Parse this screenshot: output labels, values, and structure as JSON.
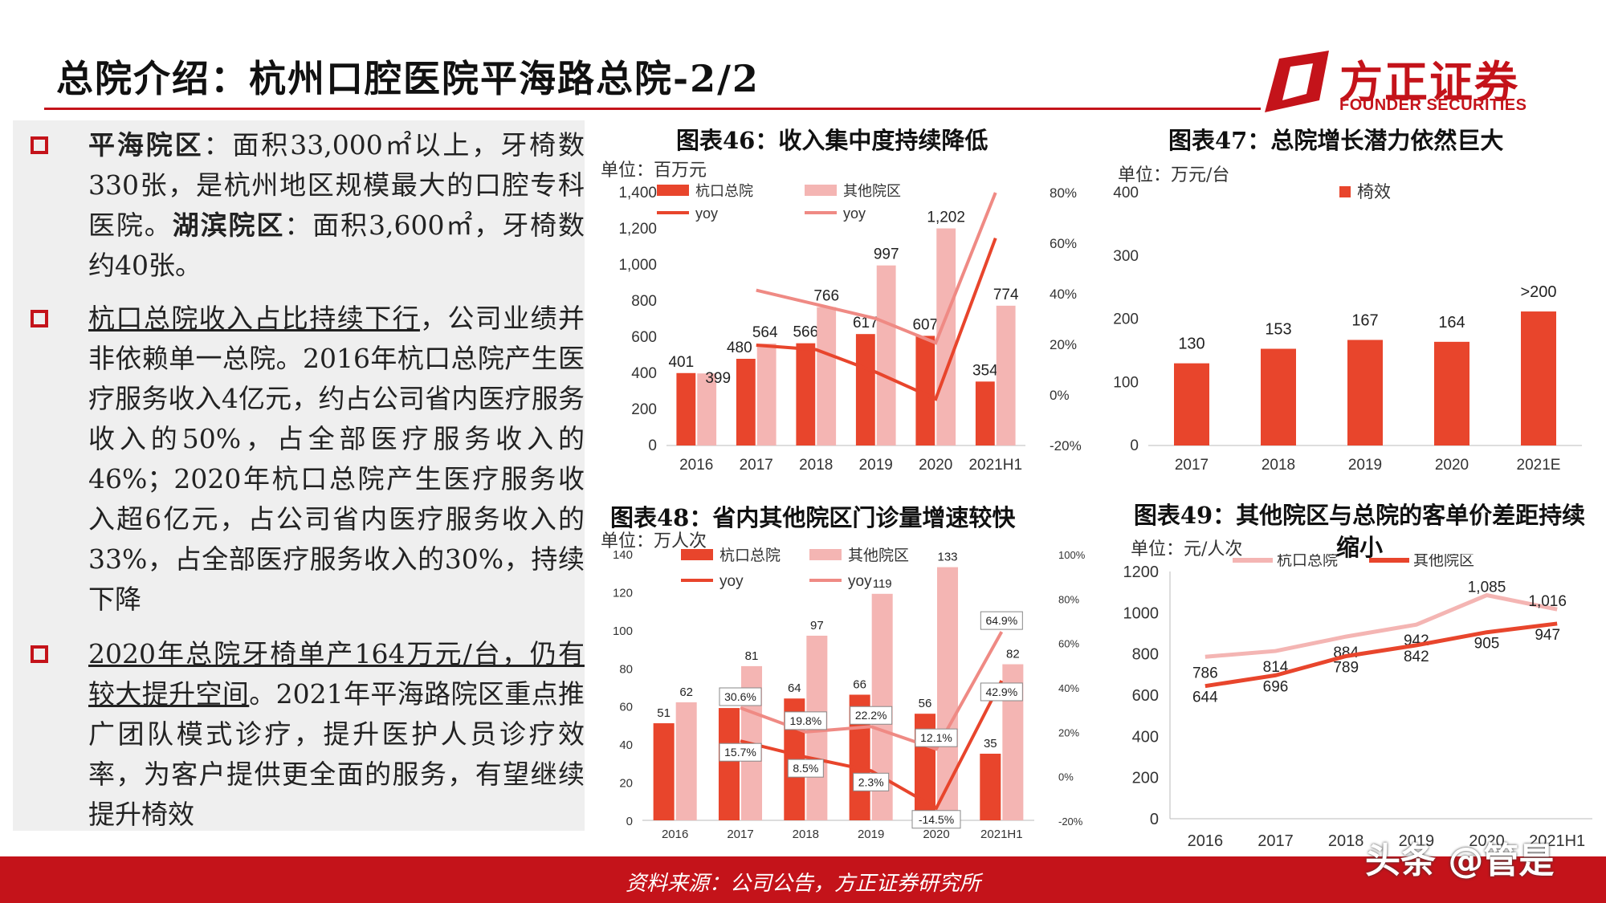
{
  "header": {
    "title": "总院介绍：杭州口腔医院平海路总院-2/2",
    "logo_name": "方正证券",
    "logo_sub": "FOUNDER SECURITIES"
  },
  "left": {
    "b1": {
      "h1": "平海院区",
      "t1": "：面积33,000㎡以上，牙椅数330张，是杭州地区规模最大的口腔专科医院。",
      "h2": "湖滨院区",
      "t2": "：面积3,600㎡，牙椅数约40张。"
    },
    "b2": {
      "u": "杭口总院收入占比持续下行",
      "t": "，公司业绩并非依赖单一总院。2016年杭口总院产生医疗服务收入4亿元，约占公司省内医疗服务收入的50%，占全部医疗服务收入的46%；2020年杭口总院产生医疗服务收入超6亿元，占公司省内医疗服务收入的33%，占全部医疗服务收入的30%，持续下降"
    },
    "b3": {
      "u": "2020年总院牙椅单产164万元/台，仍有较大提升空间",
      "t": "。2021年平海路院区重点推广团队模式诊疗，提升医护人员诊疗效率，为客户提供更全面的服务，有望继续提升椅效"
    }
  },
  "colors": {
    "dark": "#e8452c",
    "light": "#f4b5b3",
    "red": "#c4131a"
  },
  "footer": {
    "source": "资料来源：公司公告，方正证券研究所",
    "watermark": "头条 @管是"
  },
  "chart_data": [
    {
      "id": "c46",
      "type": "bar",
      "title": "图表46：收入集中度持续降低",
      "unit": "单位：百万元",
      "categories": [
        "2016",
        "2017",
        "2018",
        "2019",
        "2020",
        "2021H1"
      ],
      "ylim": [
        0,
        1400
      ],
      "yticks": [
        "0",
        "200",
        "400",
        "600",
        "800",
        "1,000",
        "1,200",
        "1,400"
      ],
      "y2lim": [
        -20,
        80
      ],
      "y2ticks": [
        "-20%",
        "0%",
        "20%",
        "40%",
        "60%",
        "80%"
      ],
      "series": [
        {
          "name": "杭口总院",
          "values": [
            401,
            480,
            566,
            617,
            607,
            354
          ],
          "labels": [
            "401",
            "480",
            "566",
            "617",
            "607",
            "354"
          ]
        },
        {
          "name": "其他院区",
          "values": [
            399,
            564,
            766,
            997,
            1202,
            774
          ],
          "labels": [
            "399",
            "564",
            "766",
            "997",
            "1,202",
            "774"
          ]
        }
      ],
      "lines": [
        {
          "name": "yoy",
          "values": [
            null,
            19.7,
            17.9,
            9.0,
            -1.6,
            62
          ]
        },
        {
          "name": "yoy",
          "values": [
            null,
            41.4,
            35.8,
            30.2,
            20.6,
            80
          ]
        }
      ]
    },
    {
      "id": "c47",
      "type": "bar",
      "title": "图表47：总院增长潜力依然巨大",
      "unit": "单位：万元/台",
      "categories": [
        "2017",
        "2018",
        "2019",
        "2020",
        "2021E"
      ],
      "ylim": [
        0,
        400
      ],
      "yticks": [
        "0",
        "100",
        "200",
        "300",
        "400"
      ],
      "series": [
        {
          "name": "椅效",
          "values": [
            130,
            153,
            167,
            164,
            212
          ],
          "labels": [
            "130",
            "153",
            "167",
            "164",
            ">200"
          ]
        }
      ]
    },
    {
      "id": "c48",
      "type": "bar",
      "title": "图表48：省内其他院区门诊量增速较快",
      "unit": "单位：万人次",
      "categories": [
        "2016",
        "2017",
        "2018",
        "2019",
        "2020",
        "2021H1"
      ],
      "ylim": [
        0,
        140
      ],
      "yticks": [
        "0",
        "20",
        "40",
        "60",
        "80",
        "100",
        "120",
        "140"
      ],
      "y2lim": [
        -20,
        100
      ],
      "y2ticks": [
        "-20%",
        "0%",
        "20%",
        "40%",
        "60%",
        "80%",
        "100%"
      ],
      "series": [
        {
          "name": "杭口总院",
          "values": [
            51,
            59,
            64,
            66,
            56,
            35
          ],
          "labels": [
            "51",
            "59",
            "64",
            "66",
            "56",
            "35"
          ]
        },
        {
          "name": "其他院区",
          "values": [
            62,
            81,
            97,
            119,
            133,
            82
          ],
          "labels": [
            "62",
            "81",
            "97",
            "119",
            "133",
            "82"
          ]
        }
      ],
      "lines": [
        {
          "name": "yoy",
          "values": [
            null,
            15.7,
            8.5,
            2.3,
            -14.5,
            42.9
          ],
          "labels": [
            "",
            "15.7%",
            "8.5%",
            "2.3%",
            "-14.5%",
            "42.9%"
          ]
        },
        {
          "name": "yoy",
          "values": [
            null,
            30.6,
            19.8,
            22.2,
            12.1,
            64.9
          ],
          "labels": [
            "",
            "30.6%",
            "19.8%",
            "22.2%",
            "12.1%",
            "64.9%"
          ]
        }
      ]
    },
    {
      "id": "c49",
      "type": "line",
      "title": "图表49：其他院区与总院的客单价差距持续缩小",
      "unit": "单位：元/人次",
      "categories": [
        "2016",
        "2017",
        "2018",
        "2019",
        "2020",
        "2021H1"
      ],
      "ylim": [
        0,
        1200
      ],
      "yticks": [
        "0",
        "200",
        "400",
        "600",
        "800",
        "1000",
        "1200"
      ],
      "series": [
        {
          "name": "杭口总院",
          "values": [
            786,
            814,
            884,
            942,
            1085,
            1016
          ],
          "labels": [
            "786",
            "814",
            "884",
            "942",
            "1,085",
            "1,016"
          ]
        },
        {
          "name": "其他院区",
          "values": [
            644,
            696,
            789,
            842,
            905,
            947
          ],
          "labels": [
            "644",
            "696",
            "789",
            "842",
            "905",
            "947"
          ]
        }
      ]
    }
  ]
}
